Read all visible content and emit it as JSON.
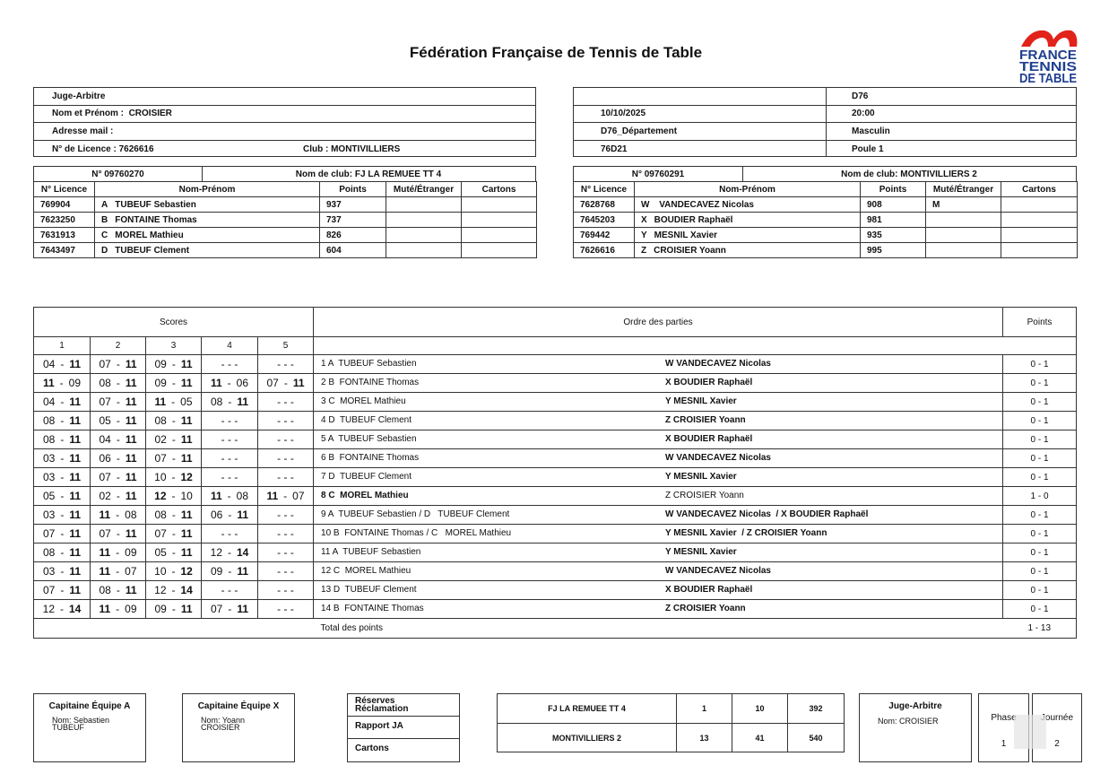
{
  "header": {
    "title": "Fédération Française de Tennis de Table",
    "logo": [
      "FRANCE",
      "TENNIS",
      "DE TABLE"
    ]
  },
  "referee": {
    "rows": [
      "Juge-Arbitre",
      "Nom et Prénom :  CROISIER",
      "Adresse mail :"
    ],
    "licence": "N° de Licence : 7626616",
    "club": "Club : MONTIVILLIERS"
  },
  "match": {
    "division": "D76",
    "date": "10/10/2025",
    "time": "20:00",
    "department": "D76_Département",
    "gender": "Masculin",
    "group": "76D21",
    "pool": "Poule 1"
  },
  "team_headers": [
    "N° Licence",
    "Nom-Prénom",
    "Points",
    "Muté/Étranger",
    "Cartons"
  ],
  "teams": [
    {
      "number": "N° 09760270",
      "club": "Nom de club: FJ LA REMUEE TT 4",
      "players": [
        {
          "licence": "769904",
          "letter": "A",
          "name": "TUBEUF Sebastien",
          "points": 937
        },
        {
          "licence": "7623250",
          "letter": "B",
          "name": "FONTAINE Thomas",
          "points": 737
        },
        {
          "licence": "7631913",
          "letter": "C",
          "name": "MOREL Mathieu",
          "points": 826
        },
        {
          "licence": "7643497",
          "letter": "D",
          "name": "TUBEUF Clement",
          "points": 604
        }
      ]
    },
    {
      "number": "N° 09760291",
      "club": "Nom de club: MONTIVILLIERS 2",
      "players": [
        {
          "licence": "7628768",
          "letter": "W",
          "name": " VANDECAVEZ Nicolas",
          "points": 908,
          "status": "M"
        },
        {
          "licence": "7645203",
          "letter": "X",
          "name": "BOUDIER Raphaël",
          "points": 981
        },
        {
          "licence": "769442",
          "letter": "Y",
          "name": "MESNIL Xavier",
          "points": 935
        },
        {
          "licence": "7626616",
          "letter": "Z",
          "name": "CROISIER Yoann",
          "points": 995
        }
      ]
    }
  ],
  "scores": {
    "title": "Scores",
    "order_title": "Ordre des parties",
    "points_title": "Points",
    "set_numbers": [
      1,
      2,
      3,
      4,
      5
    ],
    "sep": "-",
    "total_label": "Total des points",
    "total": "1 - 13",
    "games": [
      {
        "sets": [
          [
            "04",
            "11"
          ],
          [
            "07",
            "11"
          ],
          [
            "09",
            "11"
          ],
          "- - -",
          "- - -"
        ],
        "a": "1 A  TUBEUF Sebastien",
        "x": "W VANDECAVEZ Nicolas",
        "result": "0 - 1"
      },
      {
        "sets": [
          [
            "11",
            "09"
          ],
          [
            "08",
            "11"
          ],
          [
            "09",
            "11"
          ],
          [
            "11",
            "06"
          ],
          [
            "07",
            "11"
          ]
        ],
        "a": "2 B  FONTAINE Thomas",
        "x": "X BOUDIER Raphaël",
        "result": "0 - 1"
      },
      {
        "sets": [
          [
            "04",
            "11"
          ],
          [
            "07",
            "11"
          ],
          [
            "11",
            "05"
          ],
          [
            "08",
            "11"
          ],
          "- - -"
        ],
        "a": "3 C  MOREL Mathieu",
        "x": "Y MESNIL Xavier",
        "result": "0 - 1"
      },
      {
        "sets": [
          [
            "08",
            "11"
          ],
          [
            "05",
            "11"
          ],
          [
            "08",
            "11"
          ],
          "- - -",
          "- - -"
        ],
        "a": "4 D  TUBEUF Clement",
        "x": "Z CROISIER Yoann",
        "result": "0 - 1"
      },
      {
        "sets": [
          [
            "08",
            "11"
          ],
          [
            "04",
            "11"
          ],
          [
            "02",
            "11"
          ],
          "- - -",
          "- - -"
        ],
        "a": "5 A  TUBEUF Sebastien",
        "x": "X BOUDIER Raphaël",
        "result": "0 - 1"
      },
      {
        "sets": [
          [
            "03",
            "11"
          ],
          [
            "06",
            "11"
          ],
          [
            "07",
            "11"
          ],
          "- - -",
          "- - -"
        ],
        "a": "6 B  FONTAINE Thomas",
        "x": "W VANDECAVEZ Nicolas",
        "result": "0 - 1"
      },
      {
        "sets": [
          [
            "03",
            "11"
          ],
          [
            "07",
            "11"
          ],
          [
            "10",
            "12"
          ],
          "- - -",
          "- - -"
        ],
        "a": "7 D  TUBEUF Clement",
        "x": "Y MESNIL Xavier",
        "result": "0 - 1"
      },
      {
        "sets": [
          [
            "05",
            "11"
          ],
          [
            "02",
            "11"
          ],
          [
            "12",
            "10"
          ],
          [
            "11",
            "08"
          ],
          [
            "11",
            "07"
          ]
        ],
        "a": "8 C  MOREL Mathieu",
        "x": "Z CROISIER Yoann",
        "result": "1 - 0"
      },
      {
        "sets": [
          [
            "03",
            "11"
          ],
          [
            "11",
            "08"
          ],
          [
            "08",
            "11"
          ],
          [
            "06",
            "11"
          ],
          "- - -"
        ],
        "a": "9 A  TUBEUF Sebastien / D   TUBEUF Clement",
        "x": "W VANDECAVEZ Nicolas  / X BOUDIER Raphaël",
        "result": "0 - 1"
      },
      {
        "sets": [
          [
            "07",
            "11"
          ],
          [
            "07",
            "11"
          ],
          [
            "07",
            "11"
          ],
          "- - -",
          "- - -"
        ],
        "a": "10 B  FONTAINE Thomas / C   MOREL Mathieu",
        "x": "Y MESNIL Xavier  / Z CROISIER Yoann",
        "result": "0 - 1"
      },
      {
        "sets": [
          [
            "08",
            "11"
          ],
          [
            "11",
            "09"
          ],
          [
            "05",
            "11"
          ],
          [
            "12",
            "14"
          ],
          "- - -"
        ],
        "a": "11 A  TUBEUF Sebastien",
        "x": "Y MESNIL Xavier",
        "result": "0 - 1"
      },
      {
        "sets": [
          [
            "03",
            "11"
          ],
          [
            "11",
            "07"
          ],
          [
            "10",
            "12"
          ],
          [
            "09",
            "11"
          ],
          "- - -"
        ],
        "a": "12 C  MOREL Mathieu",
        "x": "W VANDECAVEZ Nicolas",
        "result": "0 - 1"
      },
      {
        "sets": [
          [
            "07",
            "11"
          ],
          [
            "08",
            "11"
          ],
          [
            "12",
            "14"
          ],
          "- - -",
          "- - -"
        ],
        "a": "13 D  TUBEUF Clement",
        "x": "X BOUDIER Raphaël",
        "result": "0 - 1"
      },
      {
        "sets": [
          [
            "12",
            "14"
          ],
          [
            "11",
            "09"
          ],
          [
            "09",
            "11"
          ],
          [
            "07",
            "11"
          ],
          "- - -"
        ],
        "a": "14 B  FONTAINE Thomas",
        "x": "Z CROISIER Yoann",
        "result": "0 - 1"
      }
    ]
  },
  "footer": {
    "captain_a": {
      "title": "Capitaine Équipe A",
      "name": "Nom: Sebastien\nTUBEUF"
    },
    "captain_x": {
      "title": "Capitaine Équipe X",
      "name": "Nom: Yoann\nCROISIER"
    },
    "notes": [
      "Réserves\nRéclamation",
      "Rapport JA",
      "Cartons"
    ],
    "summary": [
      [
        "FJ LA REMUEE TT 4",
        1,
        10,
        392
      ],
      [
        "MONTIVILLIERS 2",
        13,
        41,
        540
      ]
    ],
    "referee": {
      "title": "Juge-Arbitre",
      "name": "Nom: CROISIER"
    },
    "phase": {
      "label": "Phase",
      "value": 1
    },
    "day": {
      "label": "Journée",
      "value": 2
    }
  }
}
